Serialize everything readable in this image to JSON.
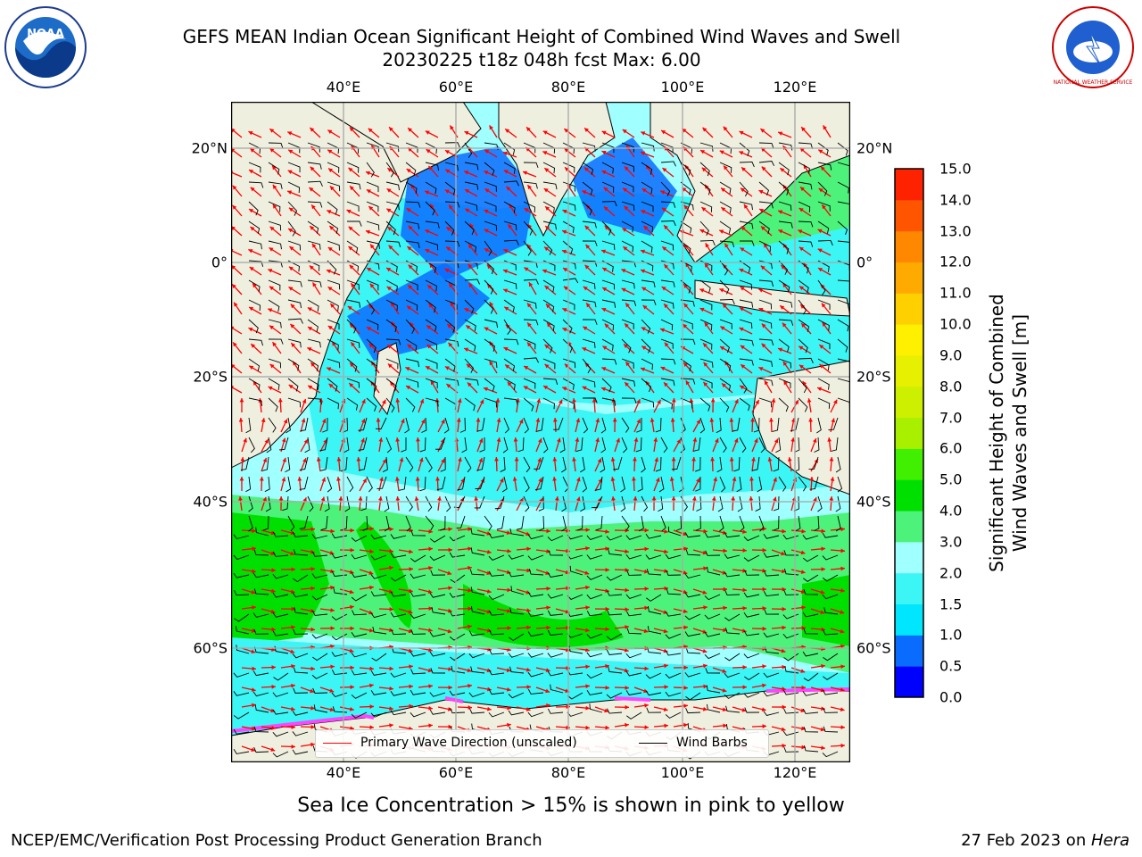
{
  "title_line1": "GEFS MEAN Indian Ocean Significant Height of Combined Wind Waves and Swell",
  "title_line2": "20230225 t18z 048h fcst   Max: 6.00",
  "lon_ticks": [
    "40°E",
    "60°E",
    "80°E",
    "100°E",
    "120°E"
  ],
  "lat_ticks": [
    "20°N",
    "0°",
    "20°S",
    "40°S",
    "60°S"
  ],
  "colorbar": {
    "label": "Significant Height of Combined Wind Waves and Swell [m]",
    "label_line1": "Significant Height of Combined",
    "label_line2": "Wind Waves and Swell [m]",
    "ticks": [
      "0.0",
      "0.5",
      "1.0",
      "1.5",
      "2.0",
      "3.0",
      "4.0",
      "5.0",
      "6.0",
      "7.0",
      "8.0",
      "9.0",
      "10.0",
      "11.0",
      "12.0",
      "13.0",
      "14.0",
      "15.0"
    ],
    "colors": [
      "#0000ff",
      "#0a6cff",
      "#00e6ff",
      "#3cf5f5",
      "#a0ffff",
      "#4df27a",
      "#00e000",
      "#40f000",
      "#a8f000",
      "#ccf000",
      "#e6f000",
      "#fff000",
      "#ffd000",
      "#ffaa00",
      "#ff8800",
      "#ff5500",
      "#ff2200"
    ]
  },
  "legend": {
    "wave_label": "Primary Wave Direction (unscaled)",
    "wave_color": "#ff0000",
    "barb_label": "Wind Barbs",
    "barb_color": "#000000"
  },
  "map_colors": {
    "land": "#efefdf",
    "ocean_low": "#0a6cff",
    "ocean_mid": "#3cf5f5",
    "ocean_pale": "#a0ffff",
    "ocean_green": "#4df27a",
    "ocean_bright": "#00e000",
    "ice": "#ff44ff"
  },
  "subnote": "Sea Ice Concentration > 15% is shown in pink to yellow",
  "footer_left": "NCEP/EMC/Verification Post Processing Product Generation Branch",
  "footer_right_prefix": "27 Feb 2023 on ",
  "footer_right_host": "Hera",
  "logos": {
    "left": "NOAA",
    "right": "NATIONAL WEATHER SERVICE"
  }
}
